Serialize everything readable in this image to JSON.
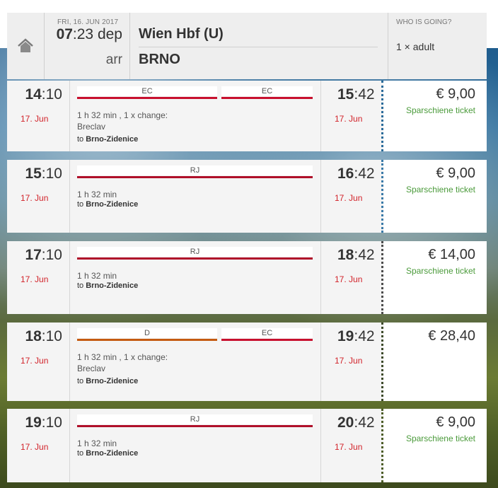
{
  "header": {
    "date": "FRI, 16. JUN 2017",
    "dep_hour": "07",
    "dep_rest": ":23 dep",
    "arr_label": "arr",
    "from": "Wien Hbf (U)",
    "to": "BRNO",
    "who_label": "WHO IS GOING?",
    "who_value": "1 × adult"
  },
  "colors": {
    "ec": "#c8102e",
    "rj": "#b0102a",
    "d": "#c55a11",
    "date_red": "#d2232a",
    "ticket_green": "#4a9a3a"
  },
  "connections": [
    {
      "dep_h": "14",
      "dep_m": ":10",
      "dep_date": "17. Jun",
      "arr_h": "15",
      "arr_m": ":42",
      "arr_date": "17. Jun",
      "trains": [
        "EC",
        "EC"
      ],
      "duration": "1 h 32 min , 1 x change:",
      "via": "Breclav",
      "to_prefix": "to ",
      "to_station": "Brno-Zidenice",
      "price": "€ 9,00",
      "ticket": "Sparschiene ticket"
    },
    {
      "dep_h": "15",
      "dep_m": ":10",
      "dep_date": "17. Jun",
      "arr_h": "16",
      "arr_m": ":42",
      "arr_date": "17. Jun",
      "trains": [
        "RJ"
      ],
      "duration": "1 h 32 min",
      "via": "",
      "to_prefix": "to ",
      "to_station": "Brno-Zidenice",
      "price": "€ 9,00",
      "ticket": "Sparschiene ticket"
    },
    {
      "dep_h": "17",
      "dep_m": ":10",
      "dep_date": "17. Jun",
      "arr_h": "18",
      "arr_m": ":42",
      "arr_date": "17. Jun",
      "trains": [
        "RJ"
      ],
      "duration": "1 h 32 min",
      "via": "",
      "to_prefix": "to ",
      "to_station": "Brno-Zidenice",
      "price": "€ 14,00",
      "ticket": "Sparschiene ticket"
    },
    {
      "dep_h": "18",
      "dep_m": ":10",
      "dep_date": "17. Jun",
      "arr_h": "19",
      "arr_m": ":42",
      "arr_date": "17. Jun",
      "trains": [
        "D",
        "EC"
      ],
      "duration": "1 h 32 min , 1 x change:",
      "via": "Breclav",
      "to_prefix": "to ",
      "to_station": "Brno-Zidenice",
      "price": "€ 28,40",
      "ticket": ""
    },
    {
      "dep_h": "19",
      "dep_m": ":10",
      "dep_date": "17. Jun",
      "arr_h": "20",
      "arr_m": ":42",
      "arr_date": "17. Jun",
      "trains": [
        "RJ"
      ],
      "duration": "1 h 32 min",
      "via": "",
      "to_prefix": "to ",
      "to_station": "Brno-Zidenice",
      "price": "€ 9,00",
      "ticket": "Sparschiene ticket"
    }
  ]
}
